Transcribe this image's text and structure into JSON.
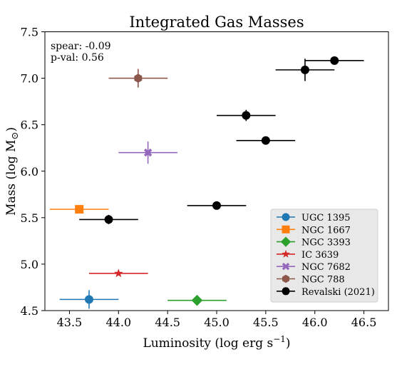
{
  "chart_data": {
    "type": "scatter",
    "title": "Integrated Gas Masses",
    "xlabel": "Luminosity (log erg s",
    "xlabel_sup": "−1",
    "xlabel_suffix": ")",
    "ylabel": "Mass (log M",
    "ylabel_sub": "⊙",
    "ylabel_suffix": ")",
    "xlim": [
      43.25,
      46.75
    ],
    "ylim": [
      4.5,
      7.5
    ],
    "xticks": [
      "43.5",
      "44.0",
      "44.5",
      "45.0",
      "45.5",
      "46.0",
      "46.5"
    ],
    "yticks": [
      "4.5",
      "5.0",
      "5.5",
      "6.0",
      "6.5",
      "7.0",
      "7.5"
    ],
    "grid": false,
    "legend": "lower-right",
    "annotation": {
      "spear": "spear: -0.09",
      "pval": "p-val: 0.56"
    },
    "series": [
      {
        "name": "UGC 1395",
        "marker": "circle",
        "color": "#1f77b4",
        "points": [
          {
            "x": 43.7,
            "y": 4.62,
            "xerr": 0.3,
            "yerr": 0.1
          }
        ]
      },
      {
        "name": "NGC 1667",
        "marker": "square",
        "color": "#ff7f0e",
        "points": [
          {
            "x": 43.6,
            "y": 5.59,
            "xerr": 0.3,
            "yerr": 0.0
          }
        ]
      },
      {
        "name": "NGC 3393",
        "marker": "diamond",
        "color": "#2ca02c",
        "points": [
          {
            "x": 44.8,
            "y": 4.61,
            "xerr": 0.3,
            "yerr": 0.0
          }
        ]
      },
      {
        "name": "IC  3639",
        "marker": "star",
        "color": "#d62728",
        "points": [
          {
            "x": 44.0,
            "y": 4.9,
            "xerr": 0.3,
            "yerr": 0.0
          }
        ]
      },
      {
        "name": "NGC 7682",
        "marker": "x",
        "color": "#9467bd",
        "points": [
          {
            "x": 44.3,
            "y": 6.2,
            "xerr": 0.3,
            "yerr": 0.12
          }
        ]
      },
      {
        "name": "NGC  788",
        "marker": "hexagon",
        "color": "#8c564b",
        "points": [
          {
            "x": 44.2,
            "y": 7.0,
            "xerr": 0.3,
            "yerr": 0.1
          }
        ]
      },
      {
        "name": "Revalski (2021)",
        "marker": "circle",
        "color": "#000000",
        "points": [
          {
            "x": 43.9,
            "y": 5.48,
            "xerr": 0.3,
            "yerr": 0.05
          },
          {
            "x": 45.0,
            "y": 5.63,
            "xerr": 0.3,
            "yerr": 0.0
          },
          {
            "x": 45.3,
            "y": 6.6,
            "xerr": 0.3,
            "yerr": 0.06
          },
          {
            "x": 45.5,
            "y": 6.33,
            "xerr": 0.3,
            "yerr": 0.0
          },
          {
            "x": 45.9,
            "y": 7.09,
            "xerr": 0.3,
            "yerr": 0.12
          },
          {
            "x": 46.2,
            "y": 7.19,
            "xerr": 0.3,
            "yerr": 0.04
          }
        ]
      }
    ]
  }
}
